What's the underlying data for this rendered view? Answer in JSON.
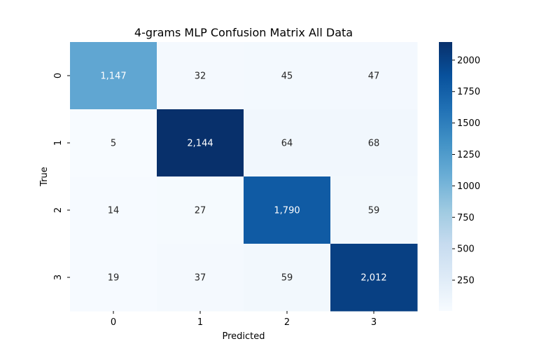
{
  "chart_data": {
    "type": "heatmap",
    "title": "4-grams MLP Confusion Matrix All Data",
    "xlabel": "Predicted",
    "ylabel": "True",
    "x_categories": [
      "0",
      "1",
      "2",
      "3"
    ],
    "y_categories": [
      "0",
      "1",
      "2",
      "3"
    ],
    "values": [
      [
        1147,
        32,
        45,
        47
      ],
      [
        5,
        2144,
        64,
        68
      ],
      [
        14,
        27,
        1790,
        59
      ],
      [
        19,
        37,
        59,
        2012
      ]
    ],
    "cell_labels": [
      [
        "1,147",
        "32",
        "45",
        "47"
      ],
      [
        "5",
        "2,144",
        "64",
        "68"
      ],
      [
        "14",
        "27",
        "1,790",
        "59"
      ],
      [
        "19",
        "37",
        "59",
        "2,012"
      ]
    ],
    "colormap": "Blues",
    "color_range": [
      5,
      2144
    ],
    "colorbar_ticks": [
      250,
      500,
      750,
      1000,
      1250,
      1500,
      1750,
      2000
    ],
    "colorbar_tick_labels": [
      "250",
      "500",
      "750",
      "1000",
      "1250",
      "1500",
      "1750",
      "2000"
    ],
    "colors": {
      "low": "#f7fbff",
      "high": "#08306b",
      "text_dark": "#262626",
      "text_light": "#ffffff",
      "axis": "#000000"
    }
  }
}
